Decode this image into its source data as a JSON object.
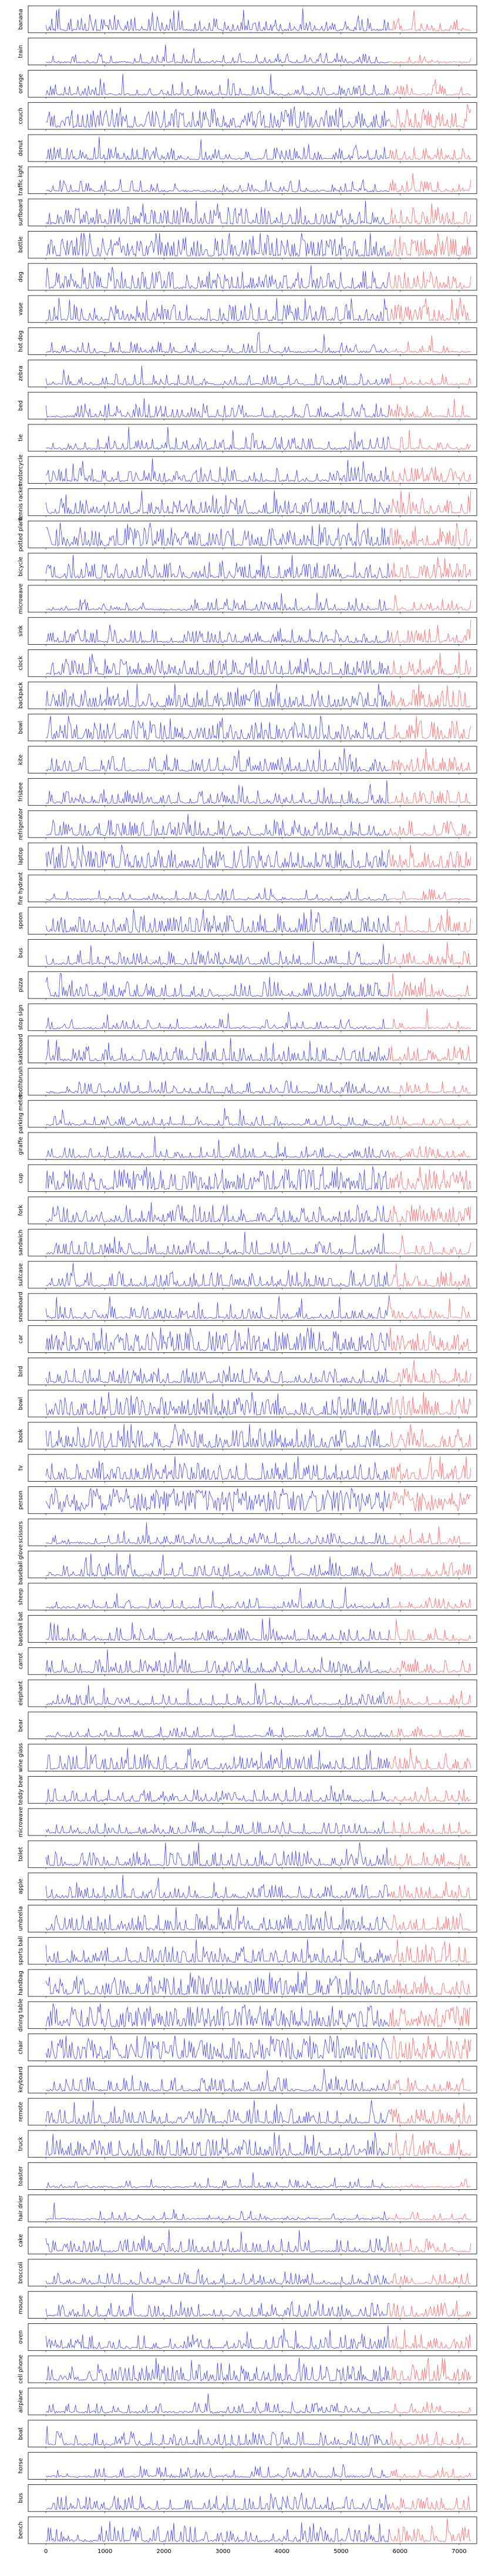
{
  "figure": {
    "colors": {
      "train": "#0000ff",
      "test": "#ff0000",
      "frame": "#000000"
    }
  },
  "chart_data": {
    "type": "line",
    "xlim": [
      -300,
      7300
    ],
    "x_ticks": [
      0,
      1000,
      2000,
      3000,
      4000,
      5000,
      6000,
      7000
    ],
    "x_tick_labels": [
      "0",
      "1000",
      "2000",
      "3000",
      "4000",
      "5000",
      "6000",
      "7000"
    ],
    "split_x": 5800,
    "grid": false,
    "legend": "none",
    "panels": [
      {
        "label": "banana",
        "density": 0.35,
        "peak": 0.55
      },
      {
        "label": "train",
        "density": 0.2,
        "peak": 0.45
      },
      {
        "label": "orange",
        "density": 0.25,
        "peak": 0.5
      },
      {
        "label": "couch",
        "density": 0.55,
        "peak": 0.8
      },
      {
        "label": "donut",
        "density": 0.35,
        "peak": 0.55
      },
      {
        "label": "traffic light",
        "density": 0.3,
        "peak": 0.55
      },
      {
        "label": "surfboard",
        "density": 0.5,
        "peak": 0.75
      },
      {
        "label": "bottle",
        "density": 0.6,
        "peak": 0.85
      },
      {
        "label": "dog",
        "density": 0.5,
        "peak": 0.75
      },
      {
        "label": "vase",
        "density": 0.45,
        "peak": 0.7
      },
      {
        "label": "hot dog",
        "density": 0.25,
        "peak": 0.5
      },
      {
        "label": "zebra",
        "density": 0.2,
        "peak": 0.5
      },
      {
        "label": "bed",
        "density": 0.35,
        "peak": 0.6
      },
      {
        "label": "tie",
        "density": 0.3,
        "peak": 0.55
      },
      {
        "label": "motorcycle",
        "density": 0.4,
        "peak": 0.65
      },
      {
        "label": "tennis racket",
        "density": 0.45,
        "peak": 0.7
      },
      {
        "label": "potted plant",
        "density": 0.55,
        "peak": 0.8
      },
      {
        "label": "bicycle",
        "density": 0.45,
        "peak": 0.7
      },
      {
        "label": "microwave",
        "density": 0.3,
        "peak": 0.55
      },
      {
        "label": "sink",
        "density": 0.35,
        "peak": 0.6
      },
      {
        "label": "clock",
        "density": 0.45,
        "peak": 0.7
      },
      {
        "label": "backpack",
        "density": 0.5,
        "peak": 0.75
      },
      {
        "label": "bowl",
        "density": 0.55,
        "peak": 0.8
      },
      {
        "label": "kite",
        "density": 0.4,
        "peak": 0.65
      },
      {
        "label": "frisbee",
        "density": 0.35,
        "peak": 0.6
      },
      {
        "label": "refrigerator",
        "density": 0.45,
        "peak": 0.7
      },
      {
        "label": "laptop",
        "density": 0.55,
        "peak": 0.8
      },
      {
        "label": "fire hydrant",
        "density": 0.25,
        "peak": 0.5
      },
      {
        "label": "spoon",
        "density": 0.5,
        "peak": 0.75
      },
      {
        "label": "bus",
        "density": 0.35,
        "peak": 0.6
      },
      {
        "label": "pizza",
        "density": 0.4,
        "peak": 0.65
      },
      {
        "label": "stop sign",
        "density": 0.2,
        "peak": 0.45
      },
      {
        "label": "skateboard",
        "density": 0.4,
        "peak": 0.65
      },
      {
        "label": "toothbrush",
        "density": 0.3,
        "peak": 0.55
      },
      {
        "label": "parking meter",
        "density": 0.2,
        "peak": 0.45
      },
      {
        "label": "giraffe",
        "density": 0.25,
        "peak": 0.5
      },
      {
        "label": "cup",
        "density": 0.65,
        "peak": 0.9
      },
      {
        "label": "fork",
        "density": 0.5,
        "peak": 0.75
      },
      {
        "label": "sandwich",
        "density": 0.35,
        "peak": 0.6
      },
      {
        "label": "suitcase",
        "density": 0.4,
        "peak": 0.65
      },
      {
        "label": "snowboard",
        "density": 0.3,
        "peak": 0.55
      },
      {
        "label": "car",
        "density": 0.6,
        "peak": 0.85
      },
      {
        "label": "bird",
        "density": 0.4,
        "peak": 0.65
      },
      {
        "label": "bowl",
        "density": 0.55,
        "peak": 0.8
      },
      {
        "label": "book",
        "density": 0.55,
        "peak": 0.8
      },
      {
        "label": "tv",
        "density": 0.5,
        "peak": 0.75
      },
      {
        "label": "person",
        "density": 0.95,
        "peak": 0.95
      },
      {
        "label": "scissors",
        "density": 0.25,
        "peak": 0.5
      },
      {
        "label": "baseball glove",
        "density": 0.35,
        "peak": 0.6
      },
      {
        "label": "sheep",
        "density": 0.25,
        "peak": 0.5
      },
      {
        "label": "baseball bat",
        "density": 0.3,
        "peak": 0.55
      },
      {
        "label": "carrot",
        "density": 0.35,
        "peak": 0.6
      },
      {
        "label": "elephant",
        "density": 0.25,
        "peak": 0.5
      },
      {
        "label": "bear",
        "density": 0.2,
        "peak": 0.45
      },
      {
        "label": "wine glass",
        "density": 0.4,
        "peak": 0.65
      },
      {
        "label": "teddy bear",
        "density": 0.3,
        "peak": 0.55
      },
      {
        "label": "microwave",
        "density": 0.3,
        "peak": 0.55
      },
      {
        "label": "toilet",
        "density": 0.4,
        "peak": 0.65
      },
      {
        "label": "apple",
        "density": 0.35,
        "peak": 0.6
      },
      {
        "label": "umbrella",
        "density": 0.45,
        "peak": 0.7
      },
      {
        "label": "sports ball",
        "density": 0.45,
        "peak": 0.7
      },
      {
        "label": "handbag",
        "density": 0.55,
        "peak": 0.8
      },
      {
        "label": "dining table",
        "density": 0.7,
        "peak": 0.9
      },
      {
        "label": "chair",
        "density": 0.75,
        "peak": 0.9
      },
      {
        "label": "keyboard",
        "density": 0.35,
        "peak": 0.6
      },
      {
        "label": "remote",
        "density": 0.4,
        "peak": 0.65
      },
      {
        "label": "truck",
        "density": 0.45,
        "peak": 0.7
      },
      {
        "label": "toaster",
        "density": 0.15,
        "peak": 0.4
      },
      {
        "label": "hair drier",
        "density": 0.15,
        "peak": 0.4
      },
      {
        "label": "cake",
        "density": 0.35,
        "peak": 0.6
      },
      {
        "label": "broccoli",
        "density": 0.3,
        "peak": 0.55
      },
      {
        "label": "mouse",
        "density": 0.35,
        "peak": 0.6
      },
      {
        "label": "oven",
        "density": 0.4,
        "peak": 0.65
      },
      {
        "label": "cell phone",
        "density": 0.5,
        "peak": 0.75
      },
      {
        "label": "airplane",
        "density": 0.25,
        "peak": 0.5
      },
      {
        "label": "boat",
        "density": 0.35,
        "peak": 0.6
      },
      {
        "label": "horse",
        "density": 0.25,
        "peak": 0.5
      },
      {
        "label": "bus",
        "density": 0.35,
        "peak": 0.6
      },
      {
        "label": "bench",
        "density": 0.45,
        "peak": 0.7
      }
    ]
  }
}
